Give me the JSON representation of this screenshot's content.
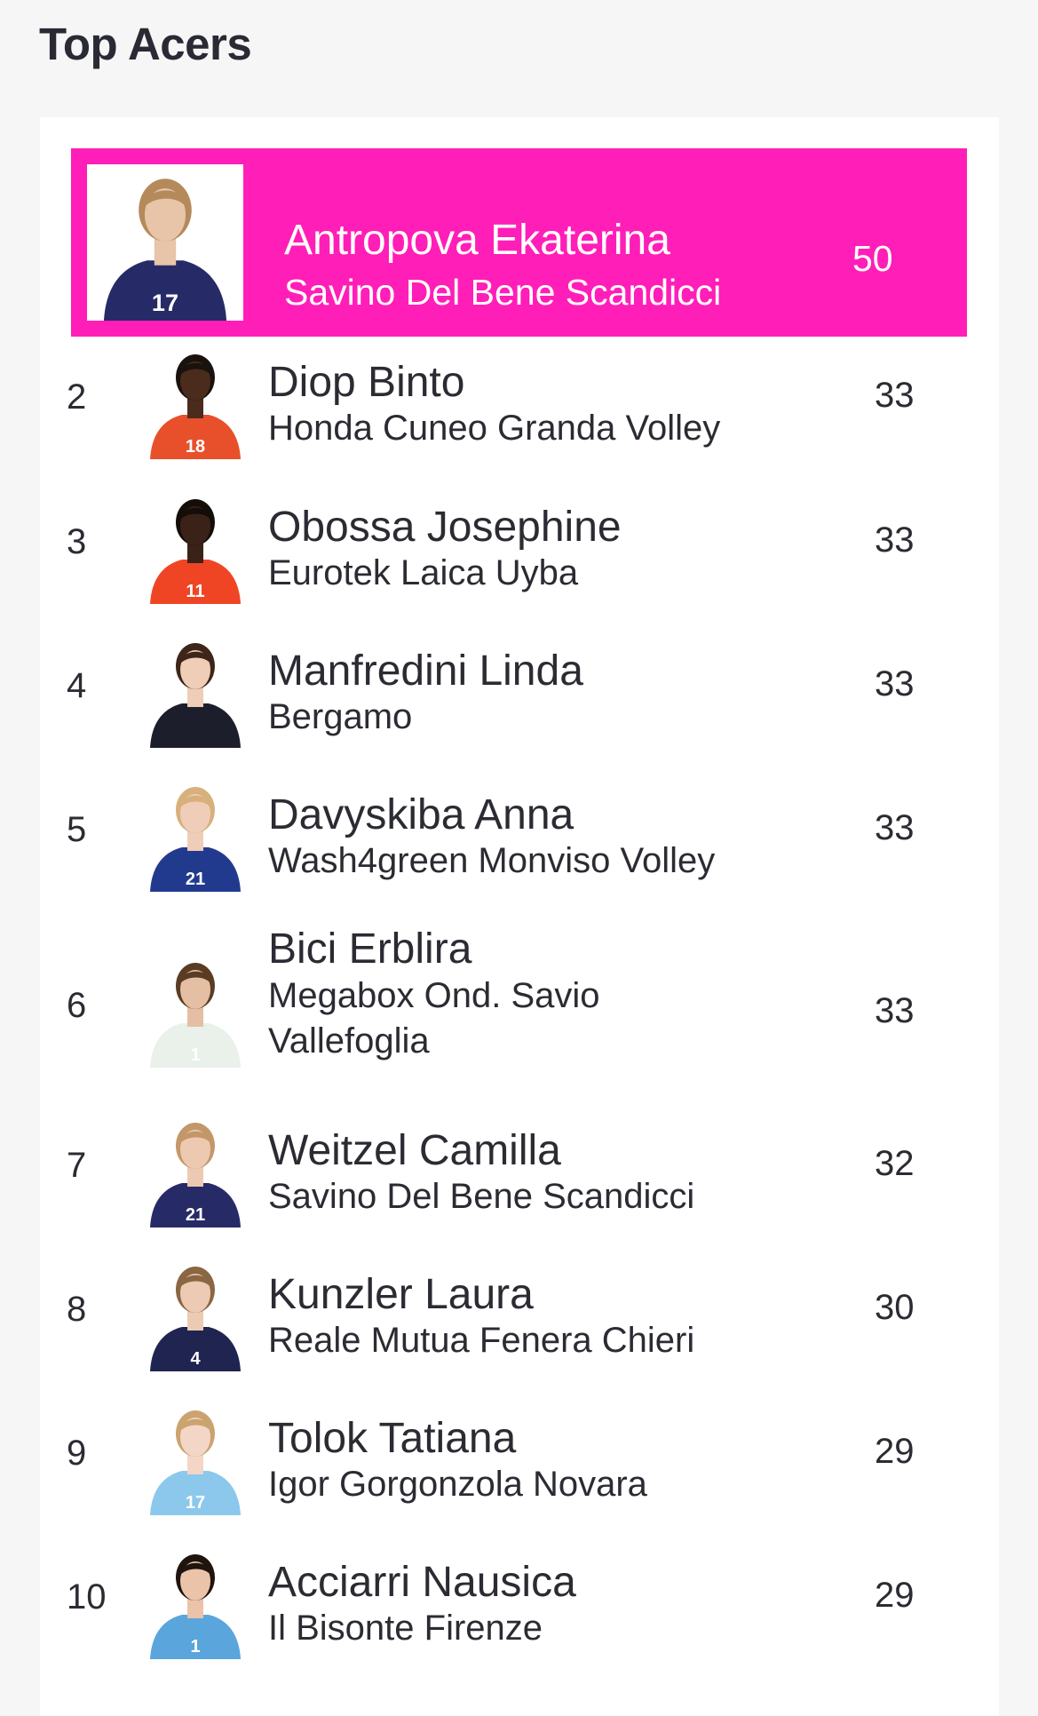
{
  "page": {
    "title": "Top Acers",
    "accent_color": "#ff1eb8"
  },
  "leader": {
    "name": "Antropova Ekaterina",
    "team": "Savino Del Bene Scandicci",
    "score": "50",
    "jersey": "17",
    "jersey_color": "#262a66",
    "skin": "#e8c4a8",
    "hair": "#b58a5a"
  },
  "players": [
    {
      "rank": "2",
      "name": "Diop Binto",
      "team": "Honda Cuneo Granda Volley",
      "score": "33",
      "jersey": "18",
      "jersey_color": "#e8502b",
      "skin": "#4a2b1c",
      "hair": "#1a120c"
    },
    {
      "rank": "3",
      "name": "Obossa Josephine",
      "team": "Eurotek Laica Uyba",
      "score": "33",
      "jersey": "11",
      "jersey_color": "#f04524",
      "skin": "#3a2218",
      "hair": "#140d08"
    },
    {
      "rank": "4",
      "name": "Manfredini Linda",
      "team": "Bergamo",
      "score": "33",
      "jersey": "",
      "jersey_color": "#1d1e2c",
      "skin": "#efcdb6",
      "hair": "#3d2619"
    },
    {
      "rank": "5",
      "name": "Davyskiba Anna",
      "team": "Wash4green Monviso Volley",
      "score": "33",
      "jersey": "21",
      "jersey_color": "#223a8e",
      "skin": "#f0cdb8",
      "hair": "#d7b07b"
    },
    {
      "rank": "6",
      "name": "Bici Erblira",
      "team": "Megabox Ond. Savio Vallefoglia",
      "score": "33",
      "jersey": "1",
      "jersey_color": "#eaf0ea",
      "skin": "#e4bfa3",
      "hair": "#5a3b24"
    },
    {
      "rank": "7",
      "name": "Weitzel Camilla",
      "team": "Savino Del Bene Scandicci",
      "score": "32",
      "jersey": "21",
      "jersey_color": "#262a66",
      "skin": "#edc9b2",
      "hair": "#c2976a"
    },
    {
      "rank": "8",
      "name": "Kunzler Laura",
      "team": "Reale Mutua Fenera Chieri",
      "score": "30",
      "jersey": "4",
      "jersey_color": "#1f2450",
      "skin": "#eccab3",
      "hair": "#8a6642"
    },
    {
      "rank": "9",
      "name": "Tolok Tatiana",
      "team": "Igor Gorgonzola Novara",
      "score": "29",
      "jersey": "17",
      "jersey_color": "#8cc8ec",
      "skin": "#f3d6c6",
      "hair": "#caa36f"
    },
    {
      "rank": "10",
      "name": "Acciarri Nausica",
      "team": "Il Bisonte Firenze",
      "score": "29",
      "jersey": "1",
      "jersey_color": "#5aa5dc",
      "skin": "#eac3a8",
      "hair": "#1f140e"
    }
  ]
}
